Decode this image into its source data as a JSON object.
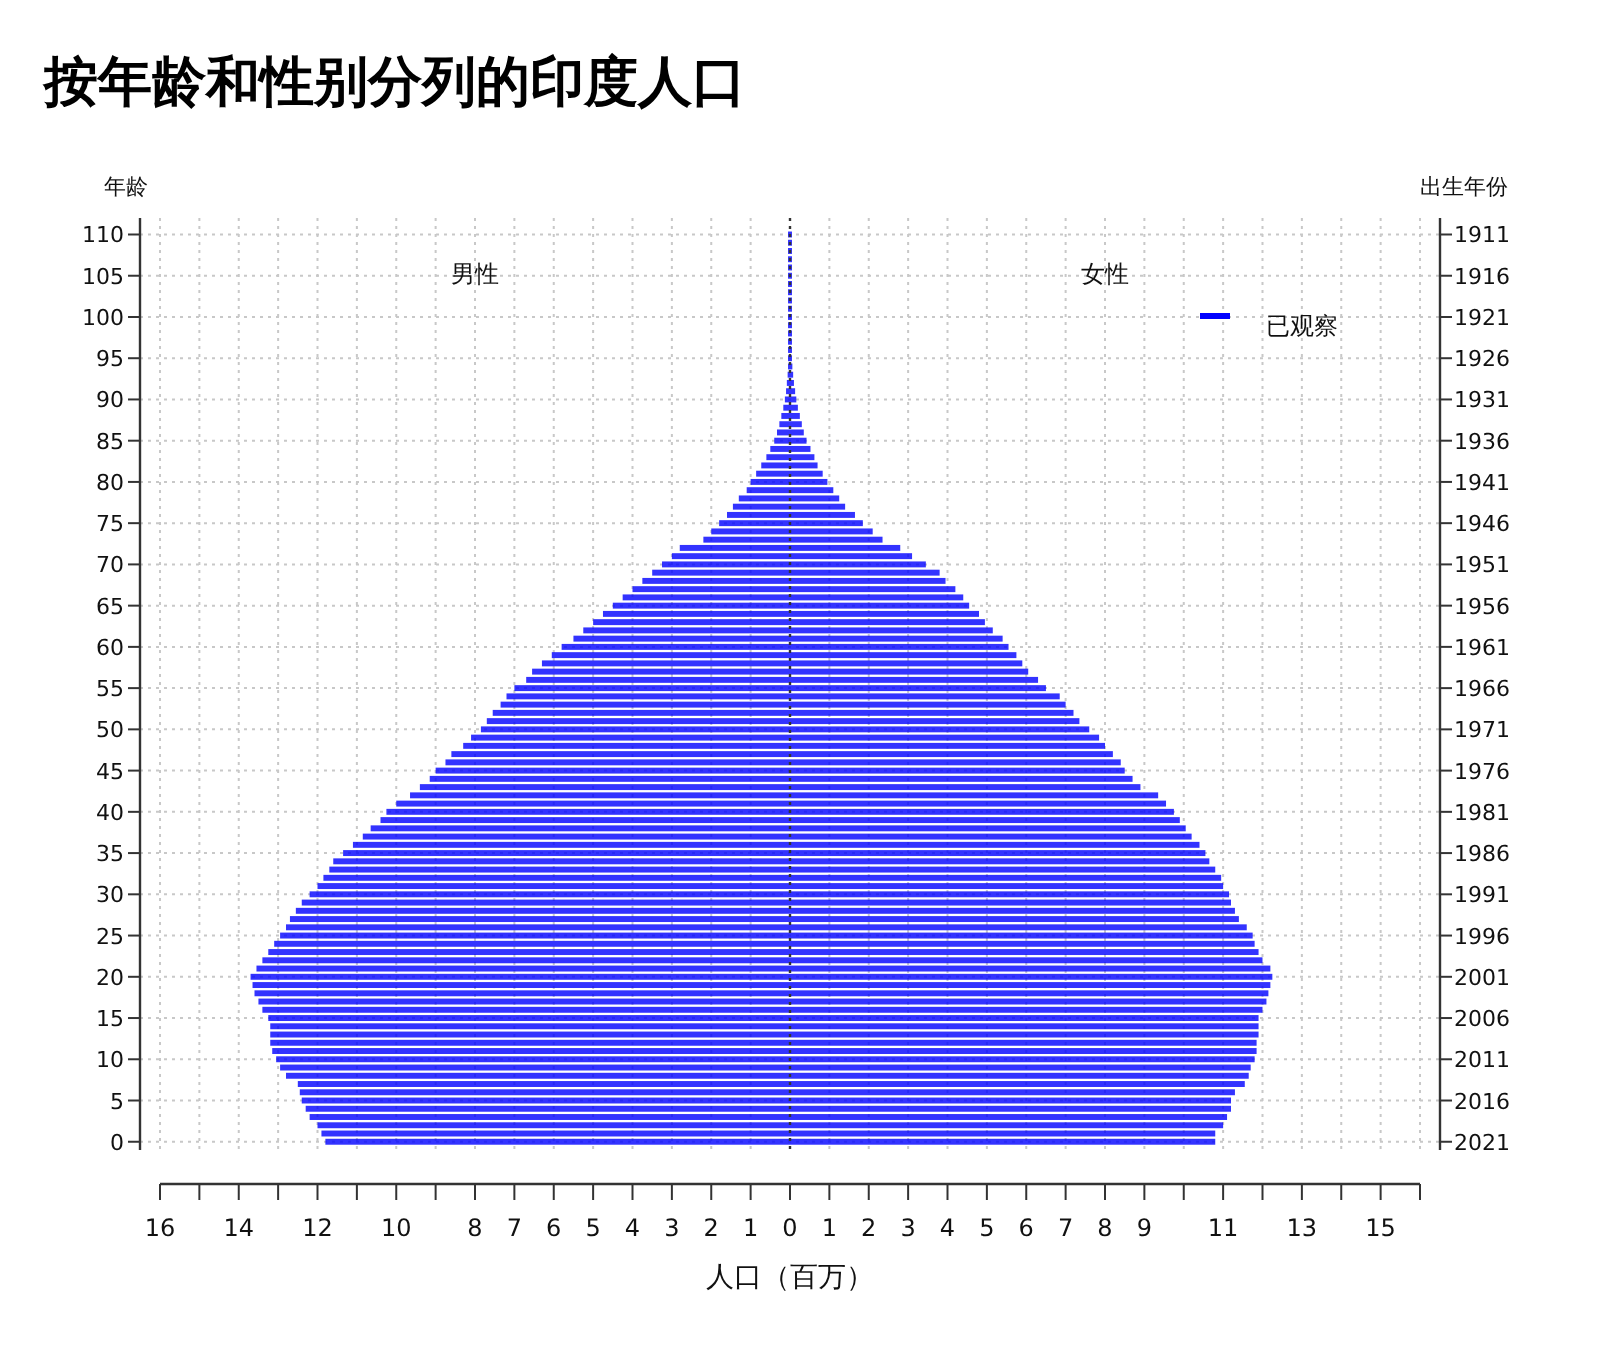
{
  "chart_data": {
    "type": "bar",
    "orientation": "horizontal",
    "title": "按年龄和性别分列的印度人口",
    "xlabel": "人口（百万）",
    "ylabel": "年龄",
    "y2label": "出生年份",
    "legend": "top right",
    "grid": true,
    "annotations": [
      "男性",
      "女性"
    ],
    "x": [
      0,
      1,
      2,
      3,
      4,
      5,
      6,
      7,
      8,
      9,
      10,
      11,
      12,
      13,
      14,
      15,
      16,
      17,
      18,
      19,
      20,
      21,
      22,
      23,
      24,
      25,
      26,
      27,
      28,
      29,
      30,
      31,
      32,
      33,
      34,
      35,
      36,
      37,
      38,
      39,
      40,
      41,
      42,
      43,
      44,
      45,
      46,
      47,
      48,
      49,
      50,
      51,
      52,
      53,
      54,
      55,
      56,
      57,
      58,
      59,
      60,
      61,
      62,
      63,
      64,
      65,
      66,
      67,
      68,
      69,
      70,
      71,
      72,
      73,
      74,
      75,
      76,
      77,
      78,
      79,
      80,
      81,
      82,
      83,
      84,
      85,
      86,
      87,
      88,
      89,
      90,
      91,
      92,
      93,
      94,
      95,
      96,
      97,
      98,
      99,
      100,
      101,
      102,
      103,
      104,
      105,
      106,
      107,
      108,
      109,
      110
    ],
    "series": [
      {
        "name": "已观察",
        "color": "#0000ff",
        "values": [
          -11.8,
          -11.9,
          -12.0,
          -12.2,
          -12.3,
          -12.4,
          -12.45,
          -12.5,
          -12.8,
          -12.95,
          -13.05,
          -13.15,
          -13.2,
          -13.2,
          -13.2,
          -13.25,
          -13.4,
          -13.5,
          -13.6,
          -13.65,
          -13.7,
          -13.55,
          -13.4,
          -13.25,
          -13.1,
          -12.95,
          -12.8,
          -12.7,
          -12.55,
          -12.4,
          -12.2,
          -12.0,
          -11.85,
          -11.7,
          -11.6,
          -11.35,
          -11.1,
          -10.85,
          -10.65,
          -10.4,
          -10.25,
          -10.0,
          -9.65,
          -9.4,
          -9.15,
          -9.0,
          -8.75,
          -8.6,
          -8.3,
          -8.1,
          -7.85,
          -7.7,
          -7.55,
          -7.35,
          -7.2,
          -7.0,
          -6.7,
          -6.55,
          -6.3,
          -6.05,
          -5.8,
          -5.5,
          -5.25,
          -5.0,
          -4.75,
          -4.5,
          -4.25,
          -4.0,
          -3.75,
          -3.5,
          -3.25,
          -3.0,
          -2.8,
          -2.2,
          -2.0,
          -1.8,
          -1.6,
          -1.45,
          -1.3,
          -1.1,
          -1.0,
          -0.86,
          -0.73,
          -0.6,
          -0.5,
          -0.4,
          -0.33,
          -0.27,
          -0.22,
          -0.17,
          -0.13,
          -0.1,
          -0.08,
          -0.06,
          -0.05,
          -0.05,
          -0.05,
          -0.05,
          -0.05,
          -0.05,
          -0.05,
          -0.05,
          -0.05,
          -0.05,
          -0.05,
          -0.05,
          -0.05,
          -0.05,
          -0.05,
          -0.05,
          -0.05
        ]
      },
      {
        "color": "#0000ff",
        "values": [
          10.8,
          10.8,
          11.0,
          11.1,
          11.2,
          11.2,
          11.3,
          11.55,
          11.65,
          11.7,
          11.8,
          11.85,
          11.85,
          11.9,
          11.9,
          11.9,
          12.0,
          12.1,
          12.15,
          12.2,
          12.25,
          12.2,
          12.0,
          11.9,
          11.8,
          11.75,
          11.6,
          11.4,
          11.3,
          11.2,
          11.15,
          11.0,
          10.95,
          10.8,
          10.65,
          10.55,
          10.4,
          10.2,
          10.05,
          9.9,
          9.75,
          9.55,
          9.35,
          8.9,
          8.7,
          8.5,
          8.4,
          8.2,
          8.0,
          7.85,
          7.6,
          7.35,
          7.2,
          7.0,
          6.85,
          6.5,
          6.3,
          6.05,
          5.9,
          5.75,
          5.55,
          5.4,
          5.15,
          4.95,
          4.8,
          4.55,
          4.4,
          4.2,
          3.95,
          3.8,
          3.45,
          3.1,
          2.8,
          2.35,
          2.1,
          1.85,
          1.65,
          1.4,
          1.25,
          1.1,
          0.95,
          0.83,
          0.7,
          0.62,
          0.52,
          0.42,
          0.35,
          0.3,
          0.25,
          0.2,
          0.16,
          0.13,
          0.1,
          0.08,
          0.06,
          0.05,
          0.05,
          0.05,
          0.05,
          0.05,
          0.05,
          0.05,
          0.05,
          0.05,
          0.05,
          0.05,
          0.05,
          0.05,
          0.05,
          0.05,
          0.05
        ]
      }
    ],
    "xlim": [
      -16,
      16
    ],
    "xticks": [
      {
        "value": -16,
        "label": "16"
      },
      {
        "value": -15,
        "label": null
      },
      {
        "value": -14,
        "label": "14"
      },
      {
        "value": -13,
        "label": null
      },
      {
        "value": -12,
        "label": "12"
      },
      {
        "value": -11,
        "label": null
      },
      {
        "value": -10,
        "label": "10"
      },
      {
        "value": -9,
        "label": null
      },
      {
        "value": -8,
        "label": "8"
      },
      {
        "value": -7,
        "label": "7"
      },
      {
        "value": -6,
        "label": "6"
      },
      {
        "value": -5,
        "label": "5"
      },
      {
        "value": -4,
        "label": "4"
      },
      {
        "value": -3,
        "label": "3"
      },
      {
        "value": -2,
        "label": "2"
      },
      {
        "value": -1,
        "label": "1"
      },
      0,
      1,
      2,
      3,
      4,
      5,
      6,
      7,
      8,
      9,
      {
        "value": 10,
        "label": null
      },
      11,
      {
        "value": 12,
        "label": null
      },
      13,
      {
        "value": 14,
        "label": null
      },
      15,
      {
        "value": 16,
        "label": null
      }
    ],
    "ylim": [
      -1,
      112
    ],
    "yticks": [
      0,
      5,
      10,
      15,
      20,
      25,
      30,
      35,
      40,
      45,
      50,
      55,
      60,
      65,
      70,
      75,
      80,
      85,
      90,
      95,
      100,
      105,
      110
    ],
    "y2lim": [
      2022,
      1909
    ],
    "y2ticks": [
      2021,
      2016,
      2011,
      2006,
      2001,
      1996,
      1991,
      1986,
      1981,
      1976,
      1971,
      1966,
      1961,
      1956,
      1951,
      1946,
      1941,
      1936,
      1931,
      1926,
      1921,
      1916,
      1911
    ],
    "ref_lines": [
      {
        "axis": "x",
        "value": 0,
        "color": "#333333",
        "line_style": "dotted"
      }
    ]
  }
}
